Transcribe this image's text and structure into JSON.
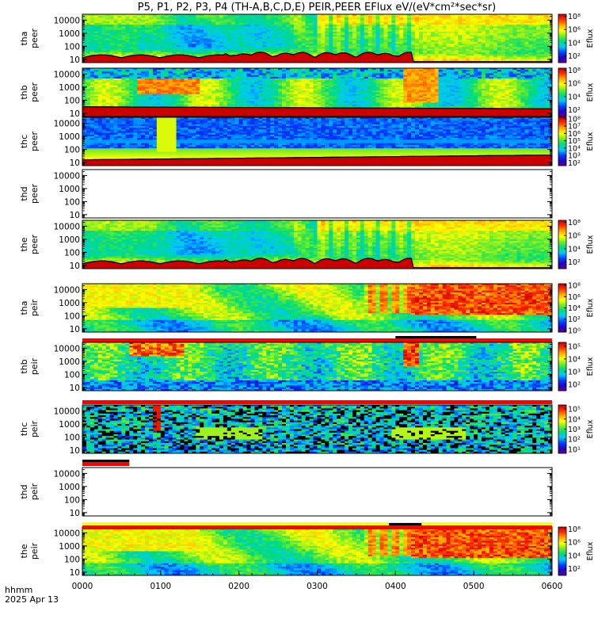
{
  "chart_data": {
    "type": "heatmap",
    "title": "P5, P1, P2, P3, P4 (TH-A,B,C,D,E) PEIR,PEER EFlux eV/(eV*cm²*sec*sr)",
    "x_axis": {
      "tick_labels": [
        "0000",
        "0100",
        "0200",
        "0300",
        "0400",
        "0500",
        "0600"
      ],
      "range_hhmm": [
        "0000",
        "0600"
      ],
      "label_line1": "hhmm",
      "label_line2": "2025 Apr 13"
    },
    "colorbar_label": "Eflux",
    "panels": [
      {
        "probe": "tha",
        "instrument": "peer",
        "ylabel": "tha peer",
        "yticks": [
          "10000",
          "1000",
          "100",
          "10"
        ],
        "has_data": true,
        "pattern": "peer",
        "seed": 11,
        "cbar_ticks": [
          "10⁸",
          "10⁶",
          "10⁴",
          "10²"
        ],
        "cbar_exps": [
          8,
          6,
          4,
          2
        ],
        "cbar_range_exp": [
          1,
          8.3
        ],
        "flags": []
      },
      {
        "probe": "thb",
        "instrument": "peer",
        "ylabel": "thb peer",
        "yticks": [
          "10000",
          "1000",
          "100",
          "10"
        ],
        "has_data": true,
        "pattern": "peer_b",
        "seed": 23,
        "cbar_ticks": [
          "10⁸",
          "10⁶",
          "10⁴",
          "10²"
        ],
        "cbar_exps": [
          8,
          6,
          4,
          2
        ],
        "cbar_range_exp": [
          1,
          8.3
        ],
        "flags": []
      },
      {
        "probe": "thc",
        "instrument": "peer",
        "ylabel": "thc peer",
        "yticks": [
          "10000",
          "1000",
          "100",
          "10"
        ],
        "has_data": true,
        "pattern": "peer_c",
        "seed": 37,
        "cbar_ticks": [
          "10⁸",
          "10⁷",
          "10⁶",
          "10⁵",
          "10⁴",
          "10³",
          "10²"
        ],
        "cbar_exps": [
          8,
          7,
          6,
          5,
          4,
          3,
          2
        ],
        "cbar_range_exp": [
          1.6,
          8.2
        ],
        "flags": []
      },
      {
        "probe": "thd",
        "instrument": "peer",
        "ylabel": "thd peer",
        "yticks": [
          "10000",
          "1000",
          "100",
          "10"
        ],
        "has_data": false,
        "seed": 0,
        "cbar_ticks": [],
        "cbar_exps": [],
        "cbar_range_exp": [
          1,
          8
        ],
        "flags": []
      },
      {
        "probe": "the",
        "instrument": "peer",
        "ylabel": "the peer",
        "yticks": [
          "10000",
          "1000",
          "100",
          "10"
        ],
        "has_data": true,
        "pattern": "peer",
        "seed": 53,
        "cbar_ticks": [
          "10⁸",
          "10⁶",
          "10⁴",
          "10²"
        ],
        "cbar_exps": [
          8,
          6,
          4,
          2
        ],
        "cbar_range_exp": [
          1,
          8.3
        ],
        "flags": []
      },
      {
        "probe": "tha",
        "instrument": "peir",
        "ylabel": "tha peir",
        "yticks": [
          "10000",
          "1000",
          "100",
          "10"
        ],
        "has_data": true,
        "pattern": "peir",
        "seed": 61,
        "cbar_ticks": [
          "10⁸",
          "10⁶",
          "10⁴",
          "10²",
          "10⁰"
        ],
        "cbar_exps": [
          8,
          6,
          4,
          2,
          0
        ],
        "cbar_range_exp": [
          -0.3,
          8.3
        ],
        "flags": [
          {
            "color": "#ff0000",
            "from_hhmm": "0000",
            "to_hhmm": "0600"
          },
          {
            "color": "#000000",
            "from_hhmm": "0400",
            "to_hhmm": "0502"
          }
        ]
      },
      {
        "probe": "thb",
        "instrument": "peir",
        "ylabel": "thb peir",
        "yticks": [
          "10000",
          "1000",
          "100",
          "10"
        ],
        "has_data": true,
        "pattern": "peir_b",
        "seed": 71,
        "cbar_ticks": [
          "10⁵",
          "10⁴",
          "10³",
          "10²"
        ],
        "cbar_exps": [
          5,
          4,
          3,
          2
        ],
        "cbar_range_exp": [
          1.5,
          5.3
        ],
        "flags": [
          {
            "color": "#ff0000",
            "from_hhmm": "0000",
            "to_hhmm": "0600"
          }
        ]
      },
      {
        "probe": "thc",
        "instrument": "peir",
        "ylabel": "thc peir",
        "yticks": [
          "10000",
          "1000",
          "100",
          "10"
        ],
        "has_data": true,
        "pattern": "peir_c",
        "seed": 83,
        "cbar_ticks": [
          "10⁵",
          "10⁴",
          "10³",
          "10²",
          "10¹"
        ],
        "cbar_exps": [
          5,
          4,
          3,
          2,
          1
        ],
        "cbar_range_exp": [
          0.6,
          5.4
        ],
        "flags": [
          {
            "color": "#ff0000",
            "from_hhmm": "0000",
            "to_hhmm": "0036"
          },
          {
            "color": "#000000",
            "from_hhmm": "0000",
            "to_hhmm": "0036"
          }
        ]
      },
      {
        "probe": "thd",
        "instrument": "peir",
        "ylabel": "thd peir",
        "yticks": [
          "10000",
          "1000",
          "100",
          "10"
        ],
        "has_data": false,
        "seed": 0,
        "cbar_ticks": [],
        "cbar_exps": [],
        "cbar_range_exp": [
          1,
          8
        ],
        "flags": [
          {
            "color": "#ffff00",
            "from_hhmm": "0000",
            "to_hhmm": "0600"
          }
        ]
      },
      {
        "probe": "the",
        "instrument": "peir",
        "ylabel": "the peir",
        "yticks": [
          "10000",
          "1000",
          "100",
          "10"
        ],
        "has_data": true,
        "pattern": "peir",
        "seed": 97,
        "cbar_ticks": [
          "10⁸",
          "10⁶",
          "10⁴",
          "10²"
        ],
        "cbar_exps": [
          8,
          6,
          4,
          2
        ],
        "cbar_range_exp": [
          1,
          8.3
        ],
        "flags": [
          {
            "color": "#ff0000",
            "from_hhmm": "0000",
            "to_hhmm": "0600"
          },
          {
            "color": "#000000",
            "from_hhmm": "0355",
            "to_hhmm": "0420"
          }
        ]
      }
    ]
  }
}
